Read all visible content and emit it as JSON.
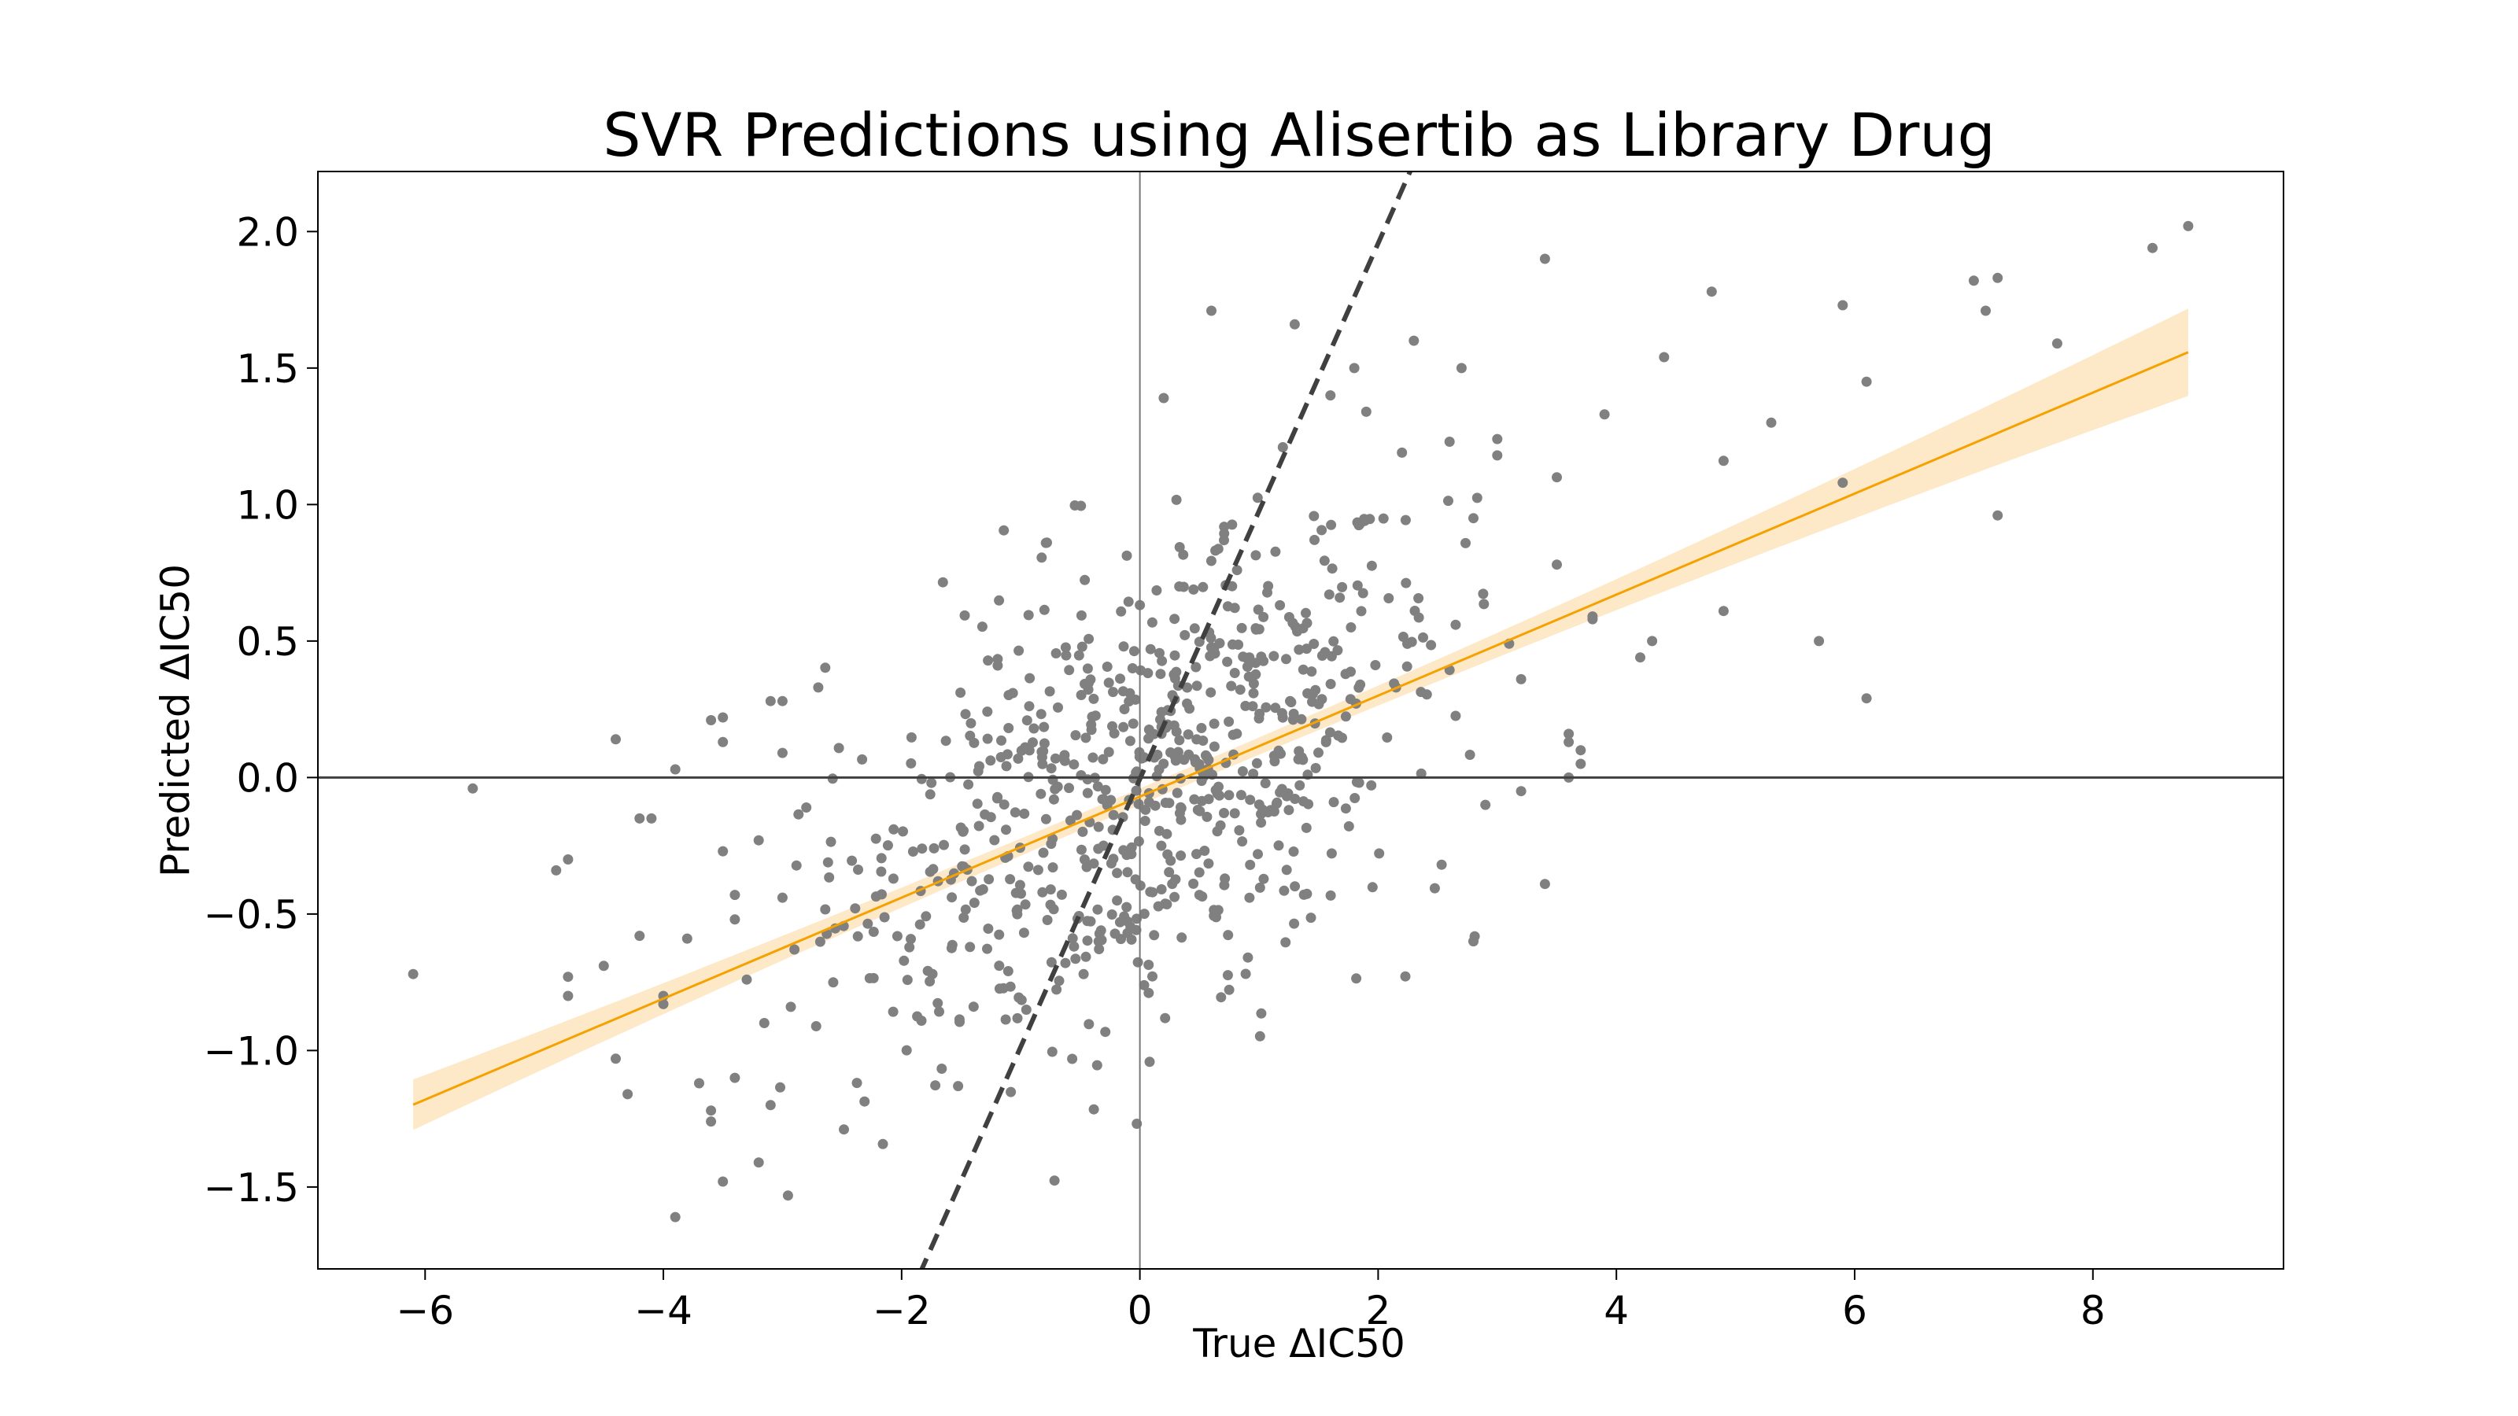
{
  "chart_data": {
    "type": "scatter",
    "title": "SVR Predictions using Alisertib as Library Drug",
    "xlabel": "True ΔIC50",
    "ylabel": "Predicted ΔIC50",
    "xlim": [
      -6.9,
      9.6
    ],
    "ylim": [
      -1.8,
      2.22
    ],
    "xticks": [
      -6,
      -4,
      -2,
      0,
      2,
      4,
      6,
      8
    ],
    "xtick_labels": [
      "−6",
      "−4",
      "−2",
      "0",
      "2",
      "4",
      "6",
      "8"
    ],
    "yticks": [
      -1.5,
      -1.0,
      -0.5,
      0.0,
      0.5,
      1.0,
      1.5,
      2.0
    ],
    "ytick_labels": [
      "−1.5",
      "−1.0",
      "−0.5",
      "0.0",
      "0.5",
      "1.0",
      "1.5",
      "2.0"
    ],
    "grid": false,
    "reference_lines": {
      "y_zero": true,
      "x_zero": true,
      "identity": true
    },
    "regression": {
      "x_range": [
        -6.1,
        8.8
      ],
      "slope": 0.185,
      "intercept": -0.07,
      "ci_half_width_mid": 0.03,
      "ci_half_width_end": 0.16,
      "ci_center_x": 0.0
    },
    "colors": {
      "points": "#808080",
      "fit_line": "#f5a100",
      "ci_band": "#fde9c8",
      "identity_line": "#404040",
      "zero_lines": "#404040"
    },
    "points_outliers": [
      [
        -6.1,
        -0.72
      ],
      [
        -5.6,
        -0.04
      ],
      [
        -4.9,
        -0.34
      ],
      [
        -4.8,
        -0.73
      ],
      [
        -4.8,
        -0.8
      ],
      [
        -4.8,
        -0.3
      ],
      [
        -4.5,
        -0.69
      ],
      [
        -4.4,
        0.14
      ],
      [
        -4.4,
        -1.03
      ],
      [
        -4.3,
        -1.16
      ],
      [
        -4.1,
        -0.15
      ],
      [
        -4.2,
        -0.15
      ],
      [
        -4.0,
        -0.8
      ],
      [
        -4.0,
        -0.83
      ],
      [
        -3.9,
        -1.61
      ],
      [
        -3.8,
        -0.59
      ],
      [
        -3.7,
        -1.12
      ],
      [
        -3.6,
        -1.26
      ],
      [
        -3.6,
        -1.22
      ],
      [
        -3.5,
        -0.27
      ],
      [
        -3.6,
        0.21
      ],
      [
        -3.5,
        0.22
      ],
      [
        -3.5,
        0.13
      ],
      [
        -3.4,
        -1.1
      ],
      [
        -3.4,
        -0.52
      ],
      [
        -3.3,
        -0.74
      ],
      [
        -3.2,
        -0.23
      ],
      [
        -3.2,
        -1.41
      ],
      [
        -3.1,
        0.28
      ],
      [
        -3.0,
        0.28
      ],
      [
        -3.5,
        -1.48
      ],
      [
        -4.2,
        -0.58
      ],
      [
        -3.9,
        0.03
      ],
      [
        -3.4,
        -0.43
      ],
      [
        -3.1,
        -1.2
      ],
      [
        -3.0,
        0.09
      ],
      [
        -3.0,
        -0.44
      ],
      [
        -2.9,
        -0.63
      ],
      [
        -2.8,
        -0.11
      ],
      [
        -2.7,
        0.33
      ],
      [
        6.1,
        0.29
      ],
      [
        6.1,
        1.45
      ],
      [
        5.9,
        1.73
      ],
      [
        5.7,
        0.5
      ],
      [
        5.3,
        1.3
      ],
      [
        5.9,
        1.08
      ],
      [
        4.8,
        1.78
      ],
      [
        4.9,
        0.61
      ],
      [
        4.9,
        1.16
      ],
      [
        4.4,
        1.54
      ],
      [
        4.3,
        0.5
      ],
      [
        4.2,
        0.44
      ],
      [
        3.9,
        1.33
      ],
      [
        3.8,
        0.59
      ],
      [
        3.8,
        0.58
      ],
      [
        3.7,
        0.05
      ],
      [
        3.6,
        0.13
      ],
      [
        3.6,
        0.16
      ],
      [
        3.5,
        0.78
      ],
      [
        3.5,
        1.1
      ],
      [
        3.4,
        1.9
      ],
      [
        3.4,
        -0.39
      ],
      [
        3.2,
        -0.05
      ],
      [
        3.2,
        0.36
      ],
      [
        3.0,
        1.24
      ],
      [
        3.0,
        1.18
      ],
      [
        3.1,
        0.49
      ],
      [
        2.9,
        -0.1
      ],
      [
        2.8,
        -0.6
      ],
      [
        2.8,
        0.95
      ],
      [
        7.0,
        1.82
      ],
      [
        7.1,
        1.71
      ],
      [
        7.2,
        1.83
      ],
      [
        7.2,
        0.96
      ],
      [
        7.7,
        1.59
      ],
      [
        8.5,
        1.94
      ],
      [
        8.8,
        2.02
      ],
      [
        0.6,
        1.71
      ],
      [
        1.3,
        1.66
      ],
      [
        2.3,
        1.6
      ],
      [
        2.7,
        1.5
      ],
      [
        2.6,
        1.23
      ],
      [
        2.2,
        1.19
      ],
      [
        1.9,
        1.34
      ],
      [
        1.8,
        1.5
      ],
      [
        1.6,
        1.4
      ],
      [
        1.2,
        1.21
      ],
      [
        0.2,
        1.39
      ],
      [
        3.6,
        0.0
      ],
      [
        3.7,
        0.1
      ]
    ]
  }
}
